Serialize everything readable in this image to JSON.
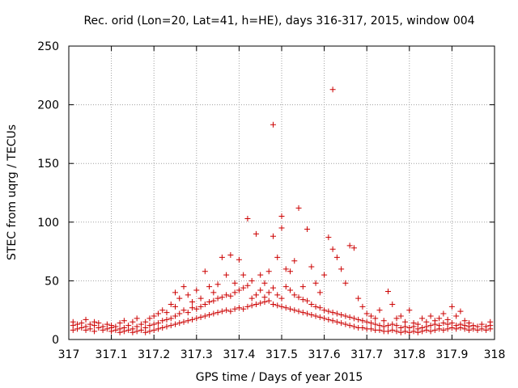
{
  "chart_data": {
    "type": "scatter",
    "title": "Rec. orid (Lon=20, Lat=41, h=HE), days 316-317, 2015, window 004",
    "xlabel": "GPS time / Days of year 2015",
    "ylabel": "STEC from uqrg / TECUs",
    "xlim": [
      317,
      318
    ],
    "ylim": [
      0,
      250
    ],
    "x_ticks": [
      "317",
      "317.1",
      "317.2",
      "317.3",
      "317.4",
      "317.5",
      "317.6",
      "317.7",
      "317.8",
      "317.9",
      "318"
    ],
    "y_ticks": [
      "0",
      "50",
      "100",
      "150",
      "200",
      "250"
    ],
    "grid": true,
    "marker": "+",
    "color": "#cc0000",
    "series": [
      {
        "name": "STEC",
        "points": [
          [
            317.01,
            8
          ],
          [
            317.01,
            12
          ],
          [
            317.01,
            15
          ],
          [
            317.02,
            9
          ],
          [
            317.02,
            13
          ],
          [
            317.03,
            10
          ],
          [
            317.03,
            14
          ],
          [
            317.04,
            8
          ],
          [
            317.04,
            11
          ],
          [
            317.04,
            17
          ],
          [
            317.05,
            9
          ],
          [
            317.05,
            13
          ],
          [
            317.06,
            7
          ],
          [
            317.06,
            12
          ],
          [
            317.06,
            15
          ],
          [
            317.07,
            10
          ],
          [
            317.07,
            14
          ],
          [
            317.08,
            8
          ],
          [
            317.08,
            11
          ],
          [
            317.09,
            9
          ],
          [
            317.09,
            13
          ],
          [
            317.1,
            7
          ],
          [
            317.1,
            10
          ],
          [
            317.1,
            12
          ],
          [
            317.11,
            8
          ],
          [
            317.11,
            11
          ],
          [
            317.12,
            6
          ],
          [
            317.12,
            9
          ],
          [
            317.12,
            14
          ],
          [
            317.13,
            7
          ],
          [
            317.13,
            10
          ],
          [
            317.13,
            16
          ],
          [
            317.14,
            8
          ],
          [
            317.14,
            12
          ],
          [
            317.15,
            6
          ],
          [
            317.15,
            9
          ],
          [
            317.15,
            15
          ],
          [
            317.16,
            7
          ],
          [
            317.16,
            11
          ],
          [
            317.16,
            18
          ],
          [
            317.17,
            8
          ],
          [
            317.17,
            13
          ],
          [
            317.18,
            6
          ],
          [
            317.18,
            10
          ],
          [
            317.18,
            15
          ],
          [
            317.19,
            7
          ],
          [
            317.19,
            12
          ],
          [
            317.19,
            18
          ],
          [
            317.2,
            8
          ],
          [
            317.2,
            13
          ],
          [
            317.2,
            20
          ],
          [
            317.21,
            9
          ],
          [
            317.21,
            14
          ],
          [
            317.21,
            22
          ],
          [
            317.22,
            10
          ],
          [
            317.22,
            16
          ],
          [
            317.22,
            25
          ],
          [
            317.23,
            11
          ],
          [
            317.23,
            17
          ],
          [
            317.23,
            23
          ],
          [
            317.24,
            12
          ],
          [
            317.24,
            18
          ],
          [
            317.24,
            30
          ],
          [
            317.25,
            13
          ],
          [
            317.25,
            20
          ],
          [
            317.25,
            28
          ],
          [
            317.25,
            40
          ],
          [
            317.26,
            14
          ],
          [
            317.26,
            22
          ],
          [
            317.26,
            35
          ],
          [
            317.27,
            15
          ],
          [
            317.27,
            25
          ],
          [
            317.27,
            45
          ],
          [
            317.28,
            16
          ],
          [
            317.28,
            23
          ],
          [
            317.28,
            38
          ],
          [
            317.29,
            17
          ],
          [
            317.29,
            27
          ],
          [
            317.29,
            32
          ],
          [
            317.3,
            18
          ],
          [
            317.3,
            26
          ],
          [
            317.3,
            42
          ],
          [
            317.31,
            19
          ],
          [
            317.31,
            28
          ],
          [
            317.31,
            35
          ],
          [
            317.32,
            20
          ],
          [
            317.32,
            30
          ],
          [
            317.32,
            58
          ],
          [
            317.33,
            21
          ],
          [
            317.33,
            32
          ],
          [
            317.33,
            45
          ],
          [
            317.34,
            22
          ],
          [
            317.34,
            33
          ],
          [
            317.34,
            40
          ],
          [
            317.35,
            23
          ],
          [
            317.35,
            35
          ],
          [
            317.35,
            47
          ],
          [
            317.36,
            24
          ],
          [
            317.36,
            36
          ],
          [
            317.36,
            70
          ],
          [
            317.37,
            25
          ],
          [
            317.37,
            38
          ],
          [
            317.37,
            55
          ],
          [
            317.38,
            24
          ],
          [
            317.38,
            37
          ],
          [
            317.38,
            72
          ],
          [
            317.39,
            26
          ],
          [
            317.39,
            40
          ],
          [
            317.39,
            48
          ],
          [
            317.4,
            27
          ],
          [
            317.4,
            42
          ],
          [
            317.4,
            68
          ],
          [
            317.41,
            26
          ],
          [
            317.41,
            44
          ],
          [
            317.41,
            55
          ],
          [
            317.42,
            28
          ],
          [
            317.42,
            46
          ],
          [
            317.42,
            103
          ],
          [
            317.43,
            29
          ],
          [
            317.43,
            35
          ],
          [
            317.43,
            50
          ],
          [
            317.44,
            30
          ],
          [
            317.44,
            38
          ],
          [
            317.44,
            90
          ],
          [
            317.45,
            31
          ],
          [
            317.45,
            42
          ],
          [
            317.45,
            55
          ],
          [
            317.46,
            32
          ],
          [
            317.46,
            36
          ],
          [
            317.46,
            48
          ],
          [
            317.47,
            33
          ],
          [
            317.47,
            40
          ],
          [
            317.47,
            58
          ],
          [
            317.48,
            30
          ],
          [
            317.48,
            44
          ],
          [
            317.48,
            183
          ],
          [
            317.48,
            88
          ],
          [
            317.49,
            29
          ],
          [
            317.49,
            38
          ],
          [
            317.49,
            70
          ],
          [
            317.5,
            28
          ],
          [
            317.5,
            35
          ],
          [
            317.5,
            105
          ],
          [
            317.5,
            95
          ],
          [
            317.51,
            27
          ],
          [
            317.51,
            45
          ],
          [
            317.51,
            60
          ],
          [
            317.52,
            26
          ],
          [
            317.52,
            42
          ],
          [
            317.52,
            58
          ],
          [
            317.53,
            25
          ],
          [
            317.53,
            38
          ],
          [
            317.53,
            67
          ],
          [
            317.54,
            24
          ],
          [
            317.54,
            36
          ],
          [
            317.54,
            112
          ],
          [
            317.55,
            23
          ],
          [
            317.55,
            34
          ],
          [
            317.55,
            45
          ],
          [
            317.56,
            22
          ],
          [
            317.56,
            33
          ],
          [
            317.56,
            94
          ],
          [
            317.57,
            21
          ],
          [
            317.57,
            30
          ],
          [
            317.57,
            62
          ],
          [
            317.58,
            20
          ],
          [
            317.58,
            28
          ],
          [
            317.58,
            48
          ],
          [
            317.59,
            19
          ],
          [
            317.59,
            27
          ],
          [
            317.59,
            40
          ],
          [
            317.6,
            18
          ],
          [
            317.6,
            25
          ],
          [
            317.6,
            55
          ],
          [
            317.61,
            17
          ],
          [
            317.61,
            24
          ],
          [
            317.61,
            87
          ],
          [
            317.62,
            16
          ],
          [
            317.62,
            23
          ],
          [
            317.62,
            213
          ],
          [
            317.62,
            77
          ],
          [
            317.63,
            15
          ],
          [
            317.63,
            22
          ],
          [
            317.63,
            70
          ],
          [
            317.64,
            14
          ],
          [
            317.64,
            21
          ],
          [
            317.64,
            60
          ],
          [
            317.65,
            13
          ],
          [
            317.65,
            20
          ],
          [
            317.65,
            48
          ],
          [
            317.66,
            12
          ],
          [
            317.66,
            19
          ],
          [
            317.66,
            80
          ],
          [
            317.67,
            11
          ],
          [
            317.67,
            18
          ],
          [
            317.67,
            78
          ],
          [
            317.68,
            10
          ],
          [
            317.68,
            17
          ],
          [
            317.68,
            35
          ],
          [
            317.69,
            10
          ],
          [
            317.69,
            16
          ],
          [
            317.69,
            28
          ],
          [
            317.7,
            9
          ],
          [
            317.7,
            15
          ],
          [
            317.7,
            22
          ],
          [
            317.71,
            9
          ],
          [
            317.71,
            14
          ],
          [
            317.71,
            20
          ],
          [
            317.72,
            8
          ],
          [
            317.72,
            13
          ],
          [
            317.72,
            18
          ],
          [
            317.73,
            8
          ],
          [
            317.73,
            12
          ],
          [
            317.73,
            25
          ],
          [
            317.74,
            7
          ],
          [
            317.74,
            11
          ],
          [
            317.74,
            16
          ],
          [
            317.75,
            7
          ],
          [
            317.75,
            12
          ],
          [
            317.75,
            41
          ],
          [
            317.76,
            8
          ],
          [
            317.76,
            13
          ],
          [
            317.76,
            30
          ],
          [
            317.77,
            7
          ],
          [
            317.77,
            12
          ],
          [
            317.77,
            18
          ],
          [
            317.78,
            6
          ],
          [
            317.78,
            10
          ],
          [
            317.78,
            20
          ],
          [
            317.79,
            7
          ],
          [
            317.79,
            11
          ],
          [
            317.79,
            15
          ],
          [
            317.8,
            6
          ],
          [
            317.8,
            10
          ],
          [
            317.8,
            25
          ],
          [
            317.81,
            7
          ],
          [
            317.81,
            11
          ],
          [
            317.81,
            14
          ],
          [
            317.82,
            6
          ],
          [
            317.82,
            9
          ],
          [
            317.82,
            13
          ],
          [
            317.83,
            7
          ],
          [
            317.83,
            10
          ],
          [
            317.83,
            18
          ],
          [
            317.84,
            8
          ],
          [
            317.84,
            11
          ],
          [
            317.84,
            15
          ],
          [
            317.85,
            7
          ],
          [
            317.85,
            12
          ],
          [
            317.85,
            20
          ],
          [
            317.86,
            8
          ],
          [
            317.86,
            13
          ],
          [
            317.86,
            16
          ],
          [
            317.87,
            9
          ],
          [
            317.87,
            12
          ],
          [
            317.87,
            18
          ],
          [
            317.88,
            8
          ],
          [
            317.88,
            14
          ],
          [
            317.88,
            22
          ],
          [
            317.89,
            9
          ],
          [
            317.89,
            13
          ],
          [
            317.89,
            17
          ],
          [
            317.9,
            10
          ],
          [
            317.9,
            14
          ],
          [
            317.9,
            28
          ],
          [
            317.91,
            9
          ],
          [
            317.91,
            12
          ],
          [
            317.91,
            20
          ],
          [
            317.92,
            10
          ],
          [
            317.92,
            13
          ],
          [
            317.92,
            24
          ],
          [
            317.93,
            9
          ],
          [
            317.93,
            12
          ],
          [
            317.93,
            16
          ],
          [
            317.94,
            8
          ],
          [
            317.94,
            11
          ],
          [
            317.94,
            14
          ],
          [
            317.95,
            9
          ],
          [
            317.95,
            12
          ],
          [
            317.96,
            8
          ],
          [
            317.96,
            11
          ],
          [
            317.97,
            9
          ],
          [
            317.97,
            13
          ],
          [
            317.98,
            8
          ],
          [
            317.98,
            11
          ],
          [
            317.99,
            9
          ],
          [
            317.99,
            12
          ],
          [
            317.99,
            15
          ]
        ]
      }
    ]
  }
}
